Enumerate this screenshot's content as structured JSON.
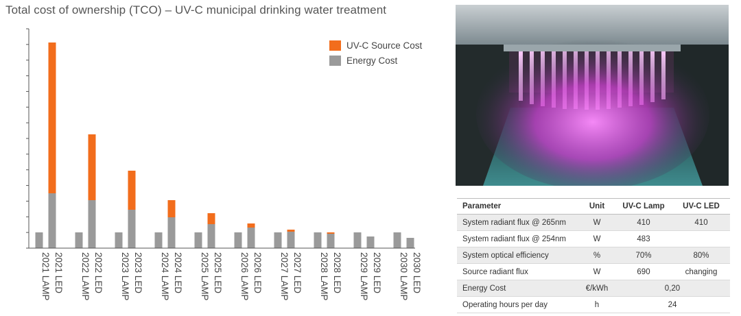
{
  "chart_data": {
    "type": "bar",
    "stacked": true,
    "title": "Total cost of ownership (TCO) – UV-C municipal drinking water treatment",
    "categories": [
      "2021 LAMP",
      "2021 LED",
      "2022 LAMP",
      "2022 LED",
      "2023 LAMP",
      "2023 LED",
      "2024 LAMP",
      "2024 LED",
      "2025 LAMP",
      "2025 LED",
      "2026 LAMP",
      "2026 LED",
      "2027 LAMP",
      "2027 LED",
      "2028 LAMP",
      "2028 LED",
      "2029 LAMP",
      "2029 LED",
      "2030 LAMP",
      "2030 LED"
    ],
    "series": [
      {
        "name": "Energy Cost",
        "color": "#9a9a9a",
        "values": [
          23,
          80,
          23,
          70,
          23,
          56,
          23,
          45,
          23,
          35,
          23,
          30,
          23,
          24,
          23,
          21,
          23,
          17,
          23,
          15
        ]
      },
      {
        "name": "UV-C Source Cost",
        "color": "#f26d1c",
        "values": [
          0,
          220,
          0,
          96,
          0,
          57,
          0,
          25,
          0,
          16,
          0,
          6,
          0,
          3,
          0,
          2,
          0,
          0,
          0,
          0
        ]
      }
    ],
    "ylim": [
      0,
      320
    ],
    "yticks": 14,
    "xlabel": "",
    "ylabel": "",
    "legend": "top-right",
    "grid": false
  },
  "legend": [
    {
      "label": "UV-C Source Cost",
      "color": "#f26d1c"
    },
    {
      "label": "Energy Cost",
      "color": "#9a9a9a"
    }
  ],
  "table": {
    "headers": [
      "Parameter",
      "Unit",
      "UV-C  Lamp",
      "UV-C  LED"
    ],
    "rows": [
      [
        "System radiant flux @ 265nm",
        "W",
        "410",
        "410"
      ],
      [
        "System radiant flux @ 254nm",
        "W",
        "483",
        ""
      ],
      [
        "System optical efficiency",
        "%",
        "70%",
        "80%"
      ],
      [
        "Source radiant flux",
        "W",
        "690",
        "changing"
      ]
    ],
    "merged_rows": [
      {
        "label": "Energy Cost",
        "unit": "€/kWh",
        "value": "0,20"
      },
      {
        "label": "Operating hours per day",
        "unit": "h",
        "value": "24"
      }
    ]
  }
}
